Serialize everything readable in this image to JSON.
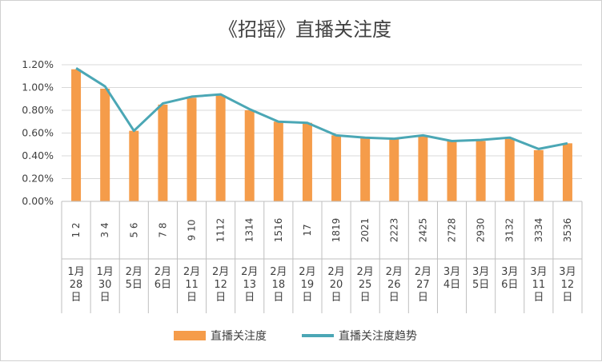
{
  "chart_data": {
    "type": "bar",
    "title": "《招摇》直播关注度",
    "ylim": [
      0,
      0.012
    ],
    "yticks": [
      "0.00%",
      "0.20%",
      "0.40%",
      "0.60%",
      "0.80%",
      "1.00%",
      "1.20%"
    ],
    "grid": true,
    "legend_position": "bottom",
    "categories_top": [
      "1 2",
      "3 4",
      "5 6",
      "7 8",
      "9 10",
      "1112",
      "1314",
      "1516",
      "17",
      "1819",
      "2021",
      "2223",
      "2425",
      "2728",
      "2930",
      "3132",
      "3334",
      "3536"
    ],
    "categories_bottom": [
      "1月28日",
      "1月30日",
      "2月5日",
      "2月6日",
      "2月11日",
      "2月12日",
      "2月13日",
      "2月18日",
      "2月19日",
      "2月20日",
      "2月25日",
      "2月26日",
      "2月27日",
      "3月4日",
      "3月5日",
      "3月6日",
      "3月11日",
      "3月12日"
    ],
    "series": [
      {
        "name": "直播关注度",
        "type": "bar",
        "color": "#F59C4A",
        "values": [
          0.0116,
          0.0099,
          0.0062,
          0.0085,
          0.0091,
          0.0093,
          0.008,
          0.007,
          0.0069,
          0.0058,
          0.0056,
          0.0055,
          0.0057,
          0.0053,
          0.0053,
          0.0055,
          0.0045,
          0.0051
        ]
      },
      {
        "name": "直播关注度趋势",
        "type": "line",
        "color": "#4BA7B5",
        "values": [
          0.0117,
          0.0101,
          0.0062,
          0.0086,
          0.0092,
          0.0094,
          0.0081,
          0.007,
          0.0069,
          0.0058,
          0.0056,
          0.0055,
          0.0058,
          0.0053,
          0.0054,
          0.0056,
          0.0046,
          0.0051
        ]
      }
    ]
  }
}
